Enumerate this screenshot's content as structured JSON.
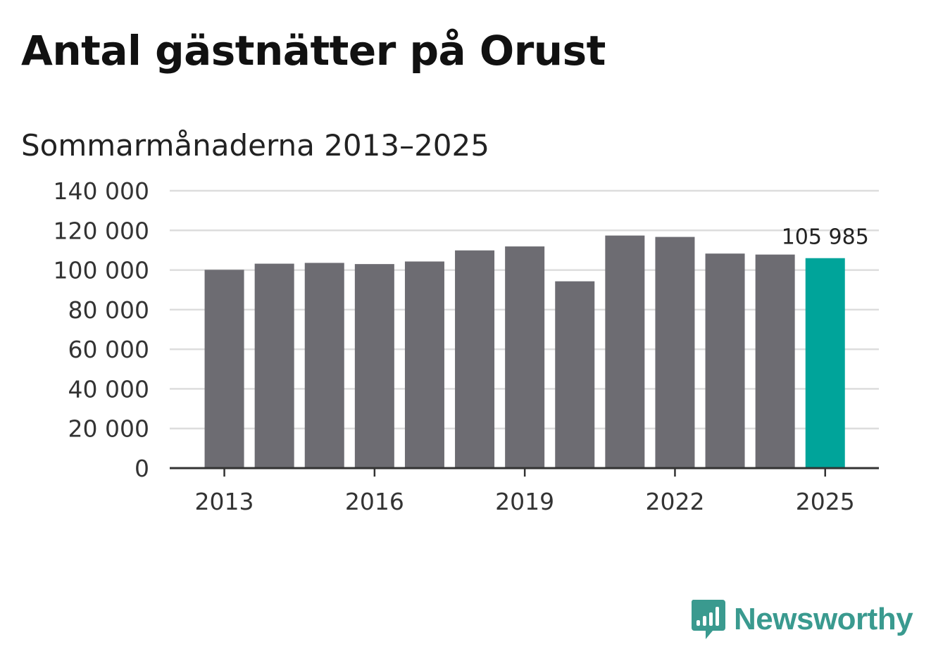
{
  "title": "Antal gästnätter på Orust",
  "subtitle": "Sommarmånaderna 2013–2025",
  "brand": {
    "name": "Newsworthy",
    "icon": "newsworthy-logo-icon",
    "color": "#3a9a8f"
  },
  "colors": {
    "bar": "#6d6c72",
    "highlight": "#00a49a",
    "grid": "#dddddd",
    "axis": "#333333",
    "text": "#333333"
  },
  "chart_data": {
    "type": "bar",
    "categories": [
      "2013",
      "2014",
      "2015",
      "2016",
      "2017",
      "2018",
      "2019",
      "2020",
      "2021",
      "2022",
      "2023",
      "2024",
      "2025"
    ],
    "values": [
      100100,
      103200,
      103600,
      103000,
      104300,
      109900,
      111900,
      94300,
      117400,
      116700,
      108300,
      107800,
      105985
    ],
    "highlight_index": 12,
    "data_labels": [
      {
        "index": 12,
        "text": "105 985"
      }
    ],
    "x_tick_labels": [
      "2013",
      "2016",
      "2019",
      "2022",
      "2025"
    ],
    "y_ticks": [
      0,
      20000,
      40000,
      60000,
      80000,
      100000,
      120000,
      140000
    ],
    "y_tick_labels": [
      "0",
      "20 000",
      "40 000",
      "60 000",
      "80 000",
      "100 000",
      "120 000",
      "140 000"
    ],
    "ylim": [
      0,
      140000
    ],
    "xlabel": "",
    "ylabel": "",
    "grid": true,
    "legend": "none"
  }
}
